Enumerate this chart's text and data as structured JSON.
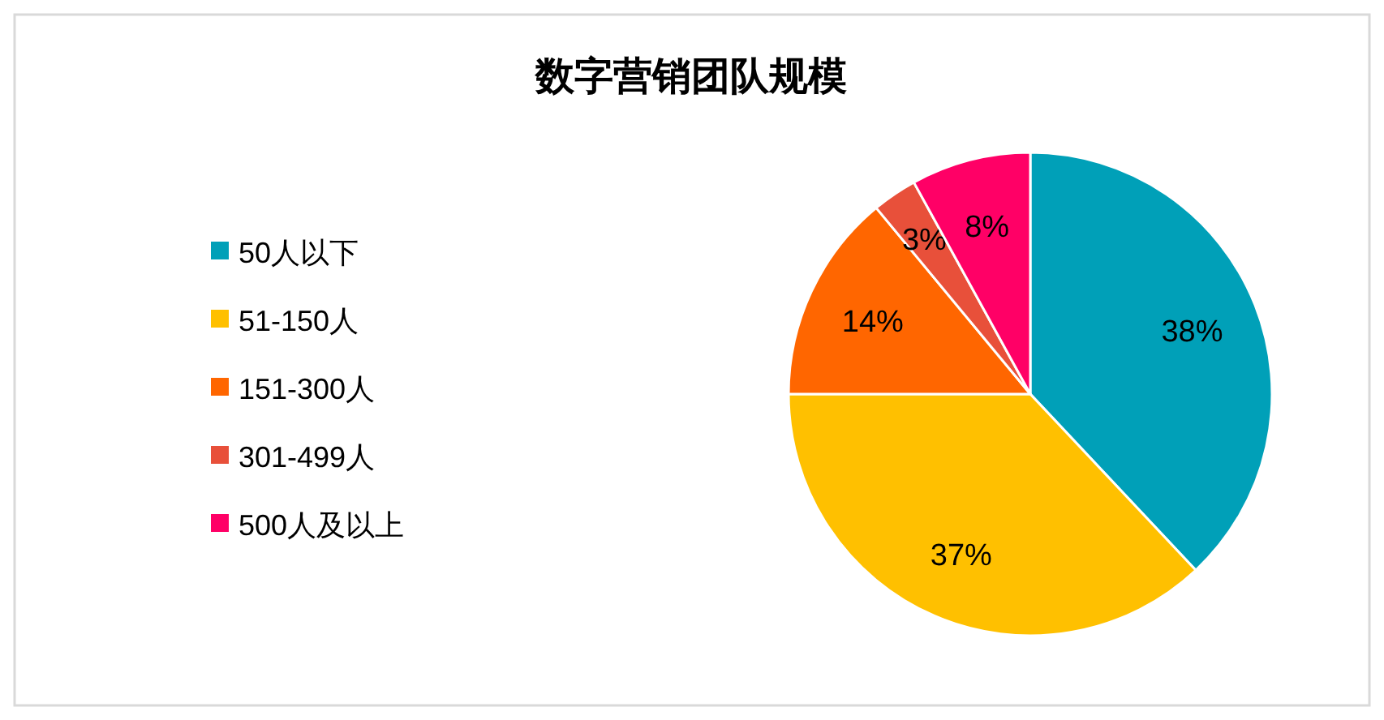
{
  "chart_data": {
    "type": "pie",
    "title": "数字营销团队规模",
    "categories": [
      "50人以下",
      "51-150人",
      "151-300人",
      "301-499人",
      "500人及以上"
    ],
    "values": [
      38,
      37,
      14,
      3,
      8
    ],
    "colors": [
      "#00a0b8",
      "#ffc000",
      "#ff6600",
      "#e8503a",
      "#ff0066"
    ],
    "value_labels": [
      "38%",
      "37%",
      "14%",
      "3%",
      "8%"
    ],
    "legend": "left"
  }
}
